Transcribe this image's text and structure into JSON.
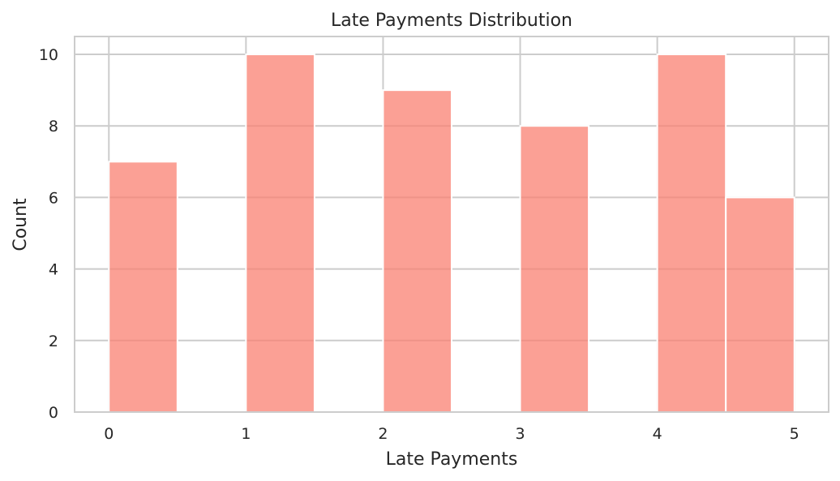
{
  "chart_data": {
    "type": "bar",
    "title": "Late Payments Distribution",
    "xlabel": "Late Payments",
    "ylabel": "Count",
    "xlim": [
      -0.25,
      5.25
    ],
    "ylim": [
      0,
      10.5
    ],
    "x_ticks": [
      0,
      1,
      2,
      3,
      4,
      5
    ],
    "y_ticks": [
      0,
      2,
      4,
      6,
      8,
      10
    ],
    "grid": true,
    "bar_color": "#FA8072",
    "bins": [
      {
        "start": 0.0,
        "end": 0.5,
        "count": 7
      },
      {
        "start": 0.5,
        "end": 1.0,
        "count": 0
      },
      {
        "start": 1.0,
        "end": 1.5,
        "count": 10
      },
      {
        "start": 1.5,
        "end": 2.0,
        "count": 0
      },
      {
        "start": 2.0,
        "end": 2.5,
        "count": 9
      },
      {
        "start": 2.5,
        "end": 3.0,
        "count": 0
      },
      {
        "start": 3.0,
        "end": 3.5,
        "count": 8
      },
      {
        "start": 3.5,
        "end": 4.0,
        "count": 0
      },
      {
        "start": 4.0,
        "end": 4.5,
        "count": 10
      },
      {
        "start": 4.5,
        "end": 5.0,
        "count": 6
      }
    ]
  }
}
